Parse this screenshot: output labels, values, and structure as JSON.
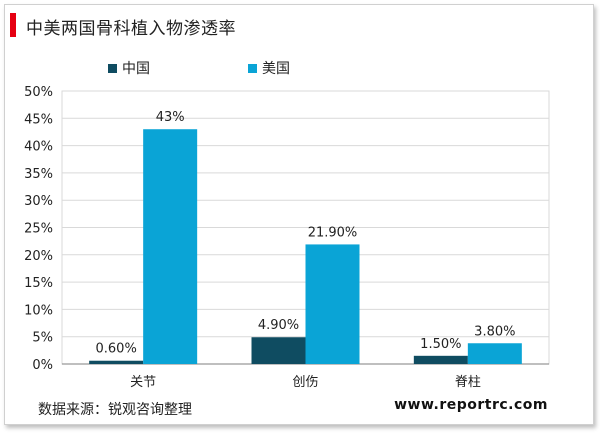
{
  "title": "中美两国骨科植入物渗透率",
  "source": "数据来源：锐观咨询整理",
  "website": "www.reportrc.com",
  "colors": {
    "accent": "#e60012",
    "china": "#0f4c61",
    "usa": "#0aa4d6",
    "grid": "#d9d9d9",
    "axis": "#7f7f7f"
  },
  "chart_data": {
    "type": "bar",
    "title": "中美两国骨科植入物渗透率",
    "categories": [
      "关节",
      "创伤",
      "脊柱"
    ],
    "series": [
      {
        "name": "中国",
        "values": [
          0.6,
          4.9,
          1.5
        ],
        "labels": [
          "0.60%",
          "4.90%",
          "1.50%"
        ]
      },
      {
        "name": "美国",
        "values": [
          43,
          21.9,
          3.8
        ],
        "labels": [
          "43%",
          "21.90%",
          "3.80%"
        ]
      }
    ],
    "ylim": [
      0,
      50
    ],
    "yticks": [
      "0%",
      "5%",
      "10%",
      "15%",
      "20%",
      "25%",
      "30%",
      "35%",
      "40%",
      "45%",
      "50%"
    ],
    "grid": true,
    "legend": "top-center"
  }
}
